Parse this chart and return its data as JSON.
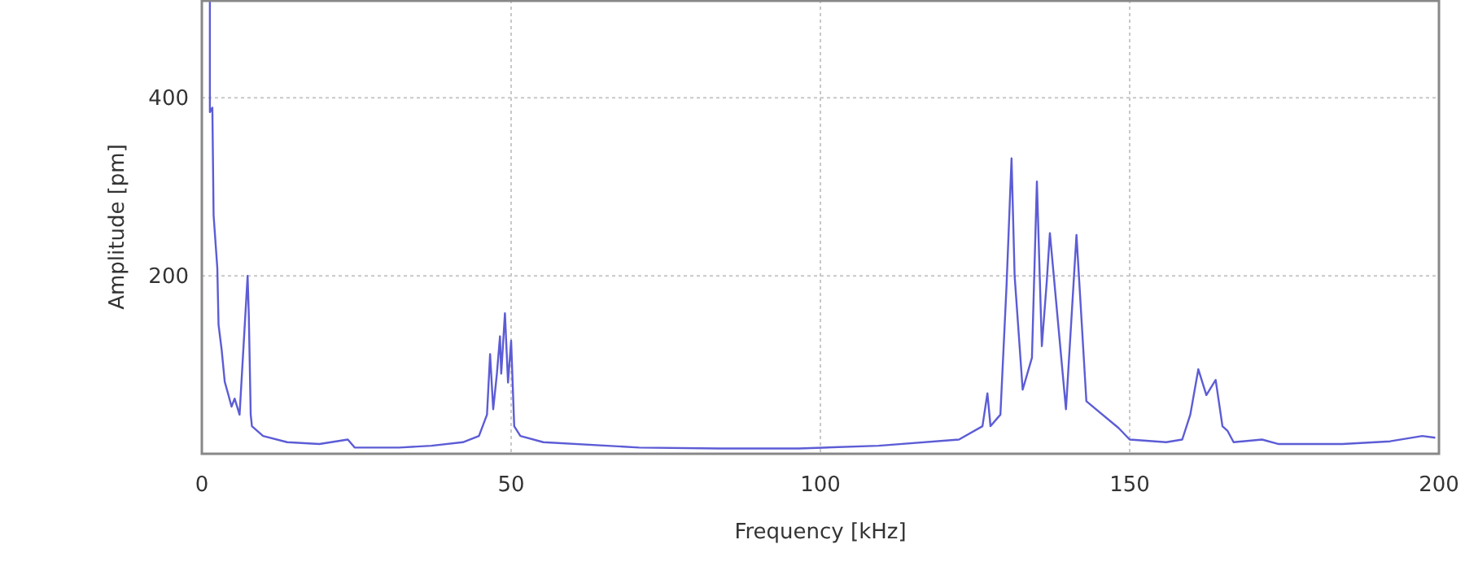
{
  "chart_data": {
    "type": "line",
    "xlabel": "Frequency [kHz]",
    "ylabel": "Amplitude [pm]",
    "xlim": [
      0,
      200
    ],
    "ylim": [
      0,
      510
    ],
    "xticks": [
      0,
      50,
      100,
      150,
      200
    ],
    "yticks": [
      200,
      400
    ],
    "grid": true,
    "marker": "none",
    "line_style": "solid",
    "series": [
      {
        "color": "#5c5cd6",
        "x": [
          1.3,
          1.3,
          1.7,
          1.9,
          2.5,
          2.7,
          3.2,
          3.7,
          4.3,
          4.8,
          5.3,
          6.1,
          7.4,
          7.6,
          7.9,
          8.1,
          9.9,
          13.8,
          19.0,
          23.6,
          24.7,
          31.9,
          37.1,
          42.2,
          44.8,
          46.1,
          46.6,
          47.1,
          47.7,
          48.2,
          48.4,
          49.0,
          49.5,
          50.0,
          50.5,
          51.5,
          55.2,
          70.7,
          83.6,
          96.5,
          109.4,
          122.4,
          126.2,
          127.0,
          127.5,
          129.1,
          130.1,
          130.9,
          131.4,
          132.7,
          134.2,
          135.0,
          135.8,
          136.6,
          137.1,
          139.7,
          141.4,
          143.0,
          148.2,
          150.0,
          155.9,
          158.5,
          159.8,
          161.1,
          162.4,
          163.9,
          165.0,
          165.8,
          166.8,
          171.4,
          174.0,
          184.4,
          192.1,
          197.3,
          199.4
        ],
        "values": [
          510,
          384,
          389,
          268,
          209,
          145,
          117,
          81,
          66,
          53,
          62,
          44,
          200,
          154,
          44,
          31,
          20,
          13,
          11,
          16,
          7,
          7,
          9,
          13,
          20,
          44,
          112,
          50,
          90,
          132,
          90,
          158,
          80,
          127,
          31,
          20,
          13,
          7,
          6,
          6,
          9,
          16,
          31,
          68,
          31,
          44,
          190,
          332,
          200,
          72,
          108,
          306,
          121,
          194,
          248,
          50,
          246,
          59,
          29,
          16,
          13,
          16,
          44,
          95,
          66,
          83,
          31,
          26,
          13,
          16,
          11,
          11,
          14,
          20,
          18
        ]
      }
    ]
  }
}
